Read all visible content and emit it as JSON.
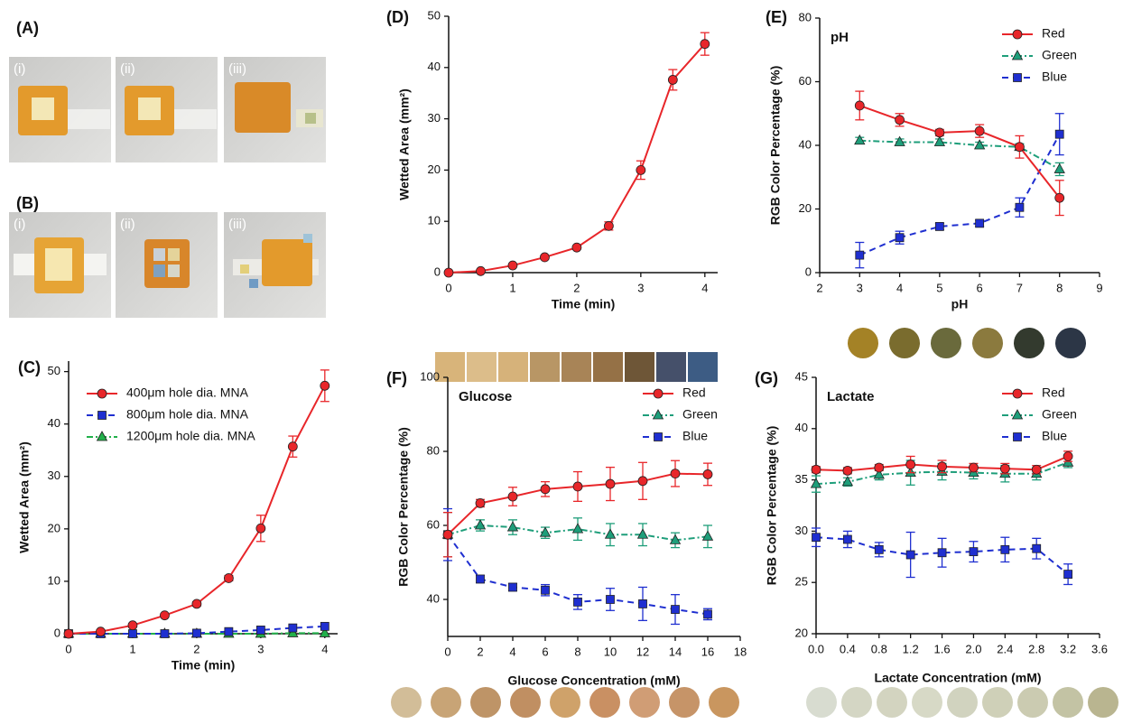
{
  "panels": [
    {
      "label": "(A)",
      "photos": [
        "(i)",
        "(ii)",
        "(iii)"
      ]
    },
    {
      "label": "(B)",
      "photos": [
        "(i)",
        "(ii)",
        "(iii)"
      ]
    }
  ],
  "chart_data": [
    {
      "type": "line",
      "panel_label": "(C)",
      "x_label": "Time (min)",
      "y_label": "Wetted Area (mm²)",
      "legend": "upper left",
      "x": [
        0,
        0.5,
        1,
        1.5,
        2,
        2.5,
        3,
        3.5,
        4
      ],
      "series": [
        {
          "name": "400μm hole dia. MNA",
          "color": "#e8262a",
          "marker": "circle",
          "dash": "solid",
          "values": [
            0,
            0.4,
            1.6,
            3.5,
            5.7,
            10.6,
            20.1,
            35.7,
            47.3
          ],
          "errors": [
            0,
            0.2,
            0.3,
            0.3,
            0.4,
            0.5,
            2.5,
            2,
            3
          ]
        },
        {
          "name": "800μm hole dia. MNA",
          "color": "#1f2fd0",
          "marker": "square",
          "dash": "dashed",
          "values": [
            0,
            0,
            0,
            0,
            0.1,
            0.4,
            0.7,
            1.1,
            1.4
          ]
        },
        {
          "name": "1200μm hole dia. MNA",
          "color": "#22b04a",
          "marker": "triangle",
          "dash": "dashdot",
          "values": [
            0,
            0,
            0,
            0,
            0,
            0,
            0,
            0.1,
            0.1
          ]
        }
      ],
      "xlim": [
        0,
        4.2
      ],
      "ylim": [
        0,
        52
      ],
      "xticks": [
        0,
        1,
        2,
        3,
        4
      ],
      "yticks": [
        0,
        10,
        20,
        30,
        40,
        50
      ]
    },
    {
      "type": "line",
      "panel_label": "(D)",
      "x_label": "Time (min)",
      "y_label": "Wetted Area (mm²)",
      "x": [
        0,
        0.5,
        1,
        1.5,
        2,
        2.5,
        3,
        3.5,
        4
      ],
      "series": [
        {
          "color": "#e8262a",
          "marker": "circle",
          "dash": "solid",
          "values": [
            0,
            0.3,
            1.4,
            3.0,
            4.9,
            9.1,
            20,
            37.6,
            44.6
          ],
          "errors": [
            0,
            0.2,
            0.2,
            0.3,
            0.3,
            0.8,
            1.8,
            2,
            2.2
          ]
        }
      ],
      "xlim": [
        0,
        4.2
      ],
      "ylim": [
        0,
        50
      ],
      "xticks": [
        0,
        1,
        2,
        3,
        4
      ],
      "yticks": [
        0,
        10,
        20,
        30,
        40,
        50
      ]
    },
    {
      "type": "line",
      "panel_label": "(E)",
      "annotation": "pH",
      "x_label": "pH",
      "y_label": "RGB Color Percentage (%)",
      "legend": "upper right",
      "x": [
        3,
        4,
        5,
        6,
        7,
        8
      ],
      "series": [
        {
          "name": "Red",
          "color": "#e8262a",
          "marker": "circle",
          "dash": "solid",
          "values": [
            52.5,
            48,
            44,
            44.5,
            39.5,
            23.5
          ],
          "errors": [
            4.5,
            2,
            1,
            2,
            3.5,
            5.5
          ]
        },
        {
          "name": "Green",
          "color": "#1e9e7a",
          "marker": "triangle",
          "dash": "dashdot",
          "values": [
            41.5,
            41,
            41,
            40,
            39.5,
            32.5
          ],
          "errors": [
            1,
            1,
            1,
            1,
            1,
            2
          ]
        },
        {
          "name": "Blue",
          "color": "#1f2fd0",
          "marker": "square",
          "dash": "dashed",
          "values": [
            5.5,
            11,
            14.5,
            15.5,
            20.5,
            43.5
          ],
          "errors": [
            4,
            2,
            1,
            1,
            3,
            6.5
          ]
        }
      ],
      "xlim": [
        2,
        9
      ],
      "ylim": [
        0,
        80
      ],
      "xticks": [
        2,
        3,
        4,
        5,
        6,
        7,
        8,
        9
      ],
      "yticks": [
        0,
        20,
        40,
        60,
        80
      ]
    },
    {
      "type": "line",
      "panel_label": "(F)",
      "annotation": "Glucose",
      "x_label": "Glucose Concentration (mM)",
      "y_label": "RGB Color Percentage (%)",
      "legend": "upper right",
      "x": [
        0,
        2,
        4,
        6,
        8,
        10,
        12,
        14,
        16
      ],
      "series": [
        {
          "name": "Red",
          "color": "#e8262a",
          "marker": "circle",
          "dash": "solid",
          "values": [
            57.5,
            66,
            67.8,
            69.8,
            70.5,
            71.2,
            72,
            74,
            73.8
          ],
          "errors": [
            6,
            1,
            2.5,
            2,
            4,
            4.5,
            5,
            3.5,
            3
          ]
        },
        {
          "name": "Green",
          "color": "#1e9e7a",
          "marker": "triangle",
          "dash": "dashdot",
          "values": [
            57.5,
            60,
            59.5,
            58,
            59,
            57.5,
            57.5,
            56,
            57
          ],
          "errors": [
            6,
            1.5,
            2,
            1.5,
            3,
            3,
            3,
            2,
            3
          ]
        },
        {
          "name": "Blue",
          "color": "#1f2fd0",
          "marker": "square",
          "dash": "dashed",
          "values": [
            57.5,
            45.5,
            43.3,
            42.5,
            39.3,
            40,
            38.8,
            37.3,
            36
          ],
          "errors": [
            7,
            1,
            1,
            1.5,
            2,
            3,
            4.5,
            4,
            1.5
          ]
        }
      ],
      "xlim": [
        0,
        18
      ],
      "ylim": [
        30,
        100
      ],
      "xticks": [
        0,
        2,
        4,
        6,
        8,
        10,
        12,
        14,
        16,
        18
      ],
      "yticks": [
        40,
        60,
        80,
        100
      ]
    },
    {
      "type": "line",
      "panel_label": "(G)",
      "annotation": "Lactate",
      "x_label": "Lactate Concentration (mM)",
      "y_label": "RGB Color Percentage (%)",
      "legend": "upper right",
      "x": [
        0,
        0.4,
        0.8,
        1.2,
        1.6,
        2.0,
        2.4,
        2.8,
        3.2
      ],
      "series": [
        {
          "name": "Red",
          "color": "#e8262a",
          "marker": "circle",
          "dash": "solid",
          "values": [
            36,
            35.9,
            36.2,
            36.5,
            36.3,
            36.2,
            36.1,
            36,
            37.3
          ],
          "errors": [
            0.3,
            0.3,
            0.3,
            0.8,
            0.6,
            0.4,
            0.5,
            0.4,
            0.5
          ]
        },
        {
          "name": "Green",
          "color": "#1e9e7a",
          "marker": "triangle",
          "dash": "dashdot",
          "values": [
            34.6,
            34.8,
            35.5,
            35.7,
            35.8,
            35.7,
            35.6,
            35.6,
            36.7
          ],
          "errors": [
            0.8,
            0.4,
            0.5,
            1.2,
            0.8,
            0.6,
            0.8,
            0.6,
            0.5
          ]
        },
        {
          "name": "Blue",
          "color": "#1f2fd0",
          "marker": "square",
          "dash": "dashed",
          "values": [
            29.4,
            29.2,
            28.2,
            27.7,
            27.9,
            28,
            28.2,
            28.3,
            25.8
          ],
          "errors": [
            0.9,
            0.8,
            0.7,
            2.2,
            1.4,
            1,
            1.2,
            1,
            1
          ]
        }
      ],
      "xlim": [
        0,
        3.6
      ],
      "ylim": [
        20,
        45
      ],
      "xticks": [
        {
          "value": 0,
          "label": "0.0"
        },
        0.4,
        0.8,
        1.2,
        1.6,
        {
          "value": 2,
          "label": "2.0"
        },
        2.4,
        2.8,
        3.2,
        3.6
      ],
      "yticks": [
        20,
        25,
        30,
        35,
        40,
        45
      ]
    }
  ]
}
